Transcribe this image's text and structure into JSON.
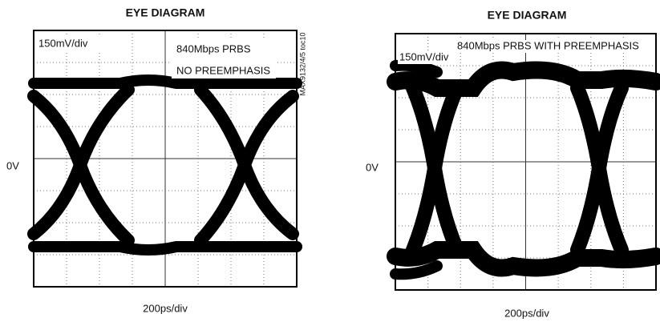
{
  "panels": [
    {
      "title": "EYE DIAGRAM",
      "y_scale": "150mV/div",
      "annotation": [
        "840Mbps PRBS",
        "NO PREEMPHASIS"
      ],
      "zero_label": "0V",
      "x_scale": "200ps/div",
      "side_label": "MAX9132/4/5 toc10"
    },
    {
      "title": "EYE DIAGRAM",
      "y_scale": "150mV/div",
      "annotation": [
        "840Mbps PRBS WITH PREEMPHASIS"
      ],
      "zero_label": "0V",
      "x_scale": "200ps/div"
    }
  ]
}
